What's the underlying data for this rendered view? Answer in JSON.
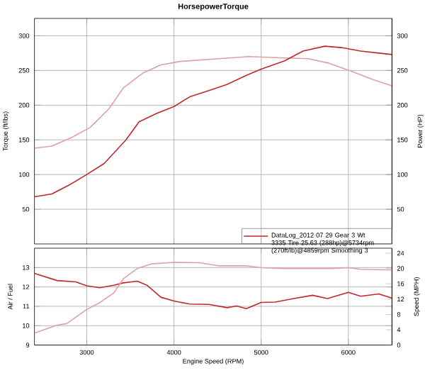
{
  "chart_data": [
    {
      "type": "line",
      "title": "HorsepowerTorque",
      "ylabel": "Torque (ft/lbs)",
      "y2label": "Power (HP)",
      "xlim": [
        2400,
        6500
      ],
      "xticks": [
        3000,
        4000,
        5000,
        6000
      ],
      "ylim": [
        0,
        325
      ],
      "yticks": [
        50,
        100,
        150,
        200,
        250,
        300
      ],
      "y2lim": [
        0,
        325
      ],
      "y2ticks": [
        50,
        100,
        150,
        200,
        250,
        300
      ],
      "grid": true,
      "tick_labels": "y",
      "legend": "bottom right",
      "series": [
        {
          "color": "#e0a0a0",
          "axis": "y",
          "x": [
            2400,
            2600,
            2820,
            3040,
            3255,
            3420,
            3640,
            3850,
            4070,
            4400,
            4860,
            5270,
            5540,
            5760,
            6030,
            6300,
            6500
          ],
          "values": [
            138,
            141,
            153,
            168,
            195,
            225,
            246,
            258,
            263,
            266,
            270,
            268,
            267,
            261,
            249,
            236,
            228
          ]
        },
        {
          "name": "DataLog_2012 07 29 Gear 3 Wt 3335 Tire 25.63 (288hp)@5734rpm (270ft/lb)@4859rpm Smoothing 3",
          "color": "#c0282a",
          "axis": "y2",
          "x": [
            2400,
            2600,
            2800,
            3000,
            3200,
            3450,
            3600,
            3800,
            4000,
            4180,
            4400,
            4610,
            4830,
            5000,
            5270,
            5480,
            5730,
            5920,
            6140,
            6350,
            6500
          ],
          "values": [
            68,
            72,
            85,
            100,
            116,
            150,
            176,
            188,
            198,
            212,
            221,
            230,
            243,
            252,
            264,
            278,
            285,
            283,
            278,
            275,
            273
          ]
        }
      ]
    },
    {
      "type": "line",
      "xlabel": "Engine Speed (RPM)",
      "ylabel": "Air / Fuel",
      "y2label": "Speed (MPH)",
      "xlim": [
        2400,
        6500
      ],
      "xticks": [
        3000,
        4000,
        5000,
        6000
      ],
      "ylim": [
        9,
        14
      ],
      "yticks": [
        9,
        10,
        11,
        12,
        13
      ],
      "y2lim": [
        0,
        25.3
      ],
      "y2ticks": [
        0,
        4,
        8,
        12,
        16,
        20,
        24
      ],
      "grid": true,
      "series": [
        {
          "color": "#c0282a",
          "axis": "y",
          "x": [
            2400,
            2660,
            2875,
            3000,
            3150,
            3310,
            3420,
            3580,
            3690,
            3850,
            4000,
            4180,
            4400,
            4610,
            4720,
            4830,
            5000,
            5160,
            5375,
            5590,
            5760,
            6000,
            6140,
            6350,
            6500
          ],
          "values": [
            12.7,
            12.33,
            12.26,
            12.06,
            11.96,
            12.09,
            12.21,
            12.3,
            12.09,
            11.47,
            11.27,
            11.12,
            11.1,
            10.93,
            11.02,
            10.88,
            11.2,
            11.22,
            11.4,
            11.57,
            11.4,
            11.72,
            11.52,
            11.64,
            11.42
          ]
        },
        {
          "color": "#e0a0a0",
          "axis": "y2",
          "x": [
            2400,
            2660,
            2770,
            3000,
            3150,
            3310,
            3420,
            3580,
            3740,
            4000,
            4290,
            4510,
            4830,
            5000,
            5270,
            5810,
            6000,
            6140,
            6500
          ],
          "values": [
            3.1,
            5.2,
            5.6,
            9.3,
            11.1,
            13.6,
            17.3,
            20.0,
            21.2,
            21.6,
            21.5,
            20.7,
            20.7,
            20.2,
            20.0,
            20.0,
            20.2,
            19.8,
            19.6
          ]
        }
      ]
    }
  ]
}
